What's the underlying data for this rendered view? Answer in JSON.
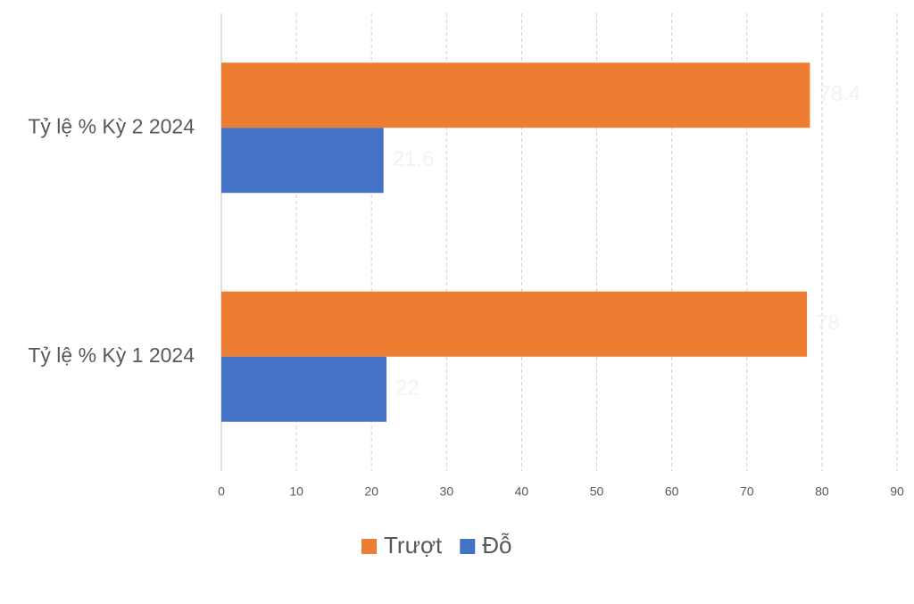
{
  "chart_data": {
    "type": "hbar",
    "categories": [
      "Tỷ lệ % Kỳ 1 2024",
      "Tỷ lệ % Kỳ 2 2024"
    ],
    "series": [
      {
        "name": "Trượt",
        "color": "#ED7D31",
        "values": [
          78,
          78.4
        ]
      },
      {
        "name": "Đỗ",
        "color": "#4472C4",
        "values": [
          22,
          21.6
        ]
      }
    ],
    "xlim": [
      0,
      90
    ],
    "xticks": [
      0,
      10,
      20,
      30,
      40,
      50,
      60,
      70,
      80,
      90
    ],
    "grid": true,
    "legend": "bottom"
  }
}
